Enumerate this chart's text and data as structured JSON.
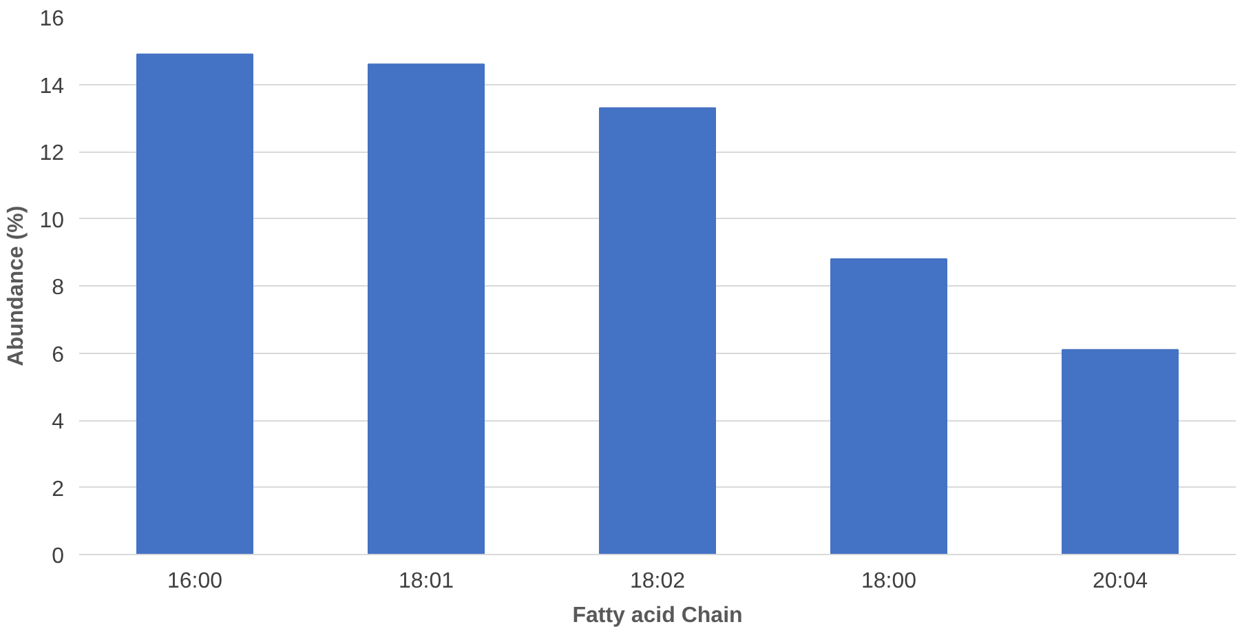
{
  "chart_data": {
    "type": "bar",
    "xlabel": "Fatty acid Chain",
    "ylabel": "Abundance (%)",
    "categories": [
      "16:00",
      "18:01",
      "18:02",
      "18:00",
      "20:04"
    ],
    "values": [
      14.9,
      14.6,
      13.3,
      8.8,
      6.1
    ],
    "color": "#4472c4",
    "ylim": [
      0,
      16
    ],
    "yticks": [
      0,
      2,
      4,
      6,
      8,
      10,
      12,
      14,
      16
    ],
    "grid": "y"
  }
}
